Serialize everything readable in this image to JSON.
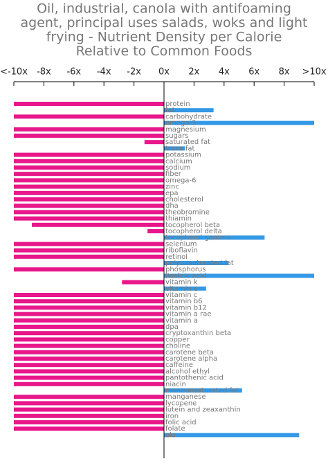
{
  "chart_data": {
    "type": "hbar",
    "title": [
      "Oil, industrial, canola with antifoaming",
      "agent, principal uses salads, woks and light",
      "frying - Nutrient Density per Calorie",
      "Relative to Common Foods"
    ],
    "categories": [
      "protein",
      "fat",
      "carbohydrate",
      "omega-3",
      "magnesium",
      "sugars",
      "saturated fat",
      "trans fat",
      "potassium",
      "calcium",
      "sodium",
      "fiber",
      "omega-6",
      "zinc",
      "epa",
      "cholesterol",
      "dha",
      "theobromine",
      "thiamin",
      "tocopherol beta",
      "tocopherol delta",
      "tocopherol gamma",
      "selenium",
      "riboflavin",
      "retinol",
      "polyunsaturated fat",
      "phosphorus",
      "linoleic acid",
      "vitamin k",
      "vitamin e",
      "vitamin c",
      "vitamin b6",
      "vitamin b12",
      "vitamin a rae",
      "vitamin a",
      "dpa",
      "cryptoxanthin beta",
      "copper",
      "choline",
      "carotene beta",
      "carotene alpha",
      "caffeine",
      "alcohol ethyl",
      "pantothenic acid",
      "niacin",
      "monounsaturated fat",
      "manganese",
      "lycopene",
      "lutein and zeaxanthin",
      "iron",
      "folic acid",
      "folate",
      "ala"
    ],
    "values": [
      -10,
      3.3,
      -10,
      10,
      -10,
      -10,
      -1.3,
      1.4,
      -10,
      -10,
      -10,
      -10,
      -10,
      -10,
      -10,
      -10,
      -10,
      -10,
      -10,
      -8.8,
      -1.1,
      6.7,
      -10,
      -10,
      -10,
      4.3,
      -10,
      10,
      -2.8,
      2.8,
      -10,
      -10,
      -10,
      -10,
      -10,
      -10,
      -10,
      -10,
      -10,
      -10,
      -10,
      -10,
      -10,
      -10,
      -10,
      5.2,
      -10,
      -10,
      -10,
      -10,
      -10,
      -10,
      9
    ],
    "positive_color": "#3399e6",
    "negative_color": "#e8178a",
    "xlim": [
      -10,
      10
    ],
    "xticks": [
      {
        "value": -10,
        "label": "<-10x"
      },
      {
        "value": -8,
        "label": "-8x"
      },
      {
        "value": -6,
        "label": "-6x"
      },
      {
        "value": -4,
        "label": "-4x"
      },
      {
        "value": -2,
        "label": "-2x"
      },
      {
        "value": 0,
        "label": "0x"
      },
      {
        "value": 2,
        "label": "2x"
      },
      {
        "value": 4,
        "label": "4x"
      },
      {
        "value": 6,
        "label": "6x"
      },
      {
        "value": 8,
        "label": "8x"
      },
      {
        "value": 10,
        "label": ">10x"
      }
    ]
  }
}
